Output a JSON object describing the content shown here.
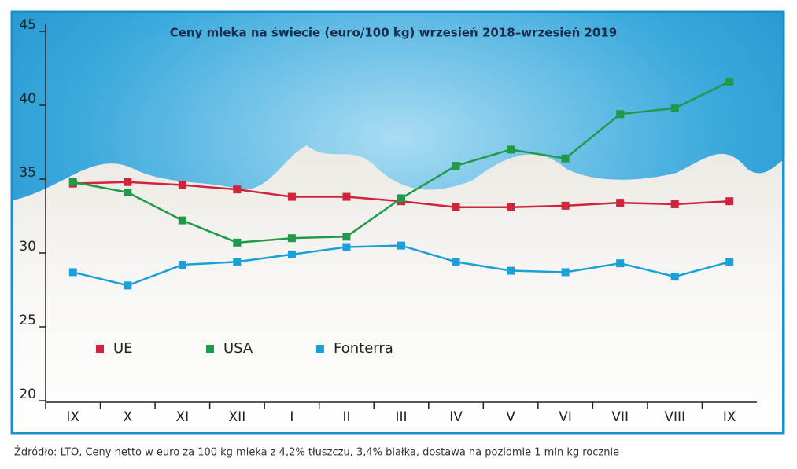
{
  "chart_data": {
    "type": "line",
    "title": "Ceny mleka na świecie (euro/100 kg) wrzesień 2018–wrzesień 2019",
    "categories": [
      "IX",
      "X",
      "XI",
      "XII",
      "I",
      "II",
      "III",
      "IV",
      "V",
      "VI",
      "VII",
      "VIII",
      "IX"
    ],
    "series": [
      {
        "name": "UE",
        "color": "#d0233c",
        "values": [
          34.7,
          34.8,
          34.6,
          34.3,
          33.8,
          33.8,
          33.5,
          33.1,
          33.1,
          33.2,
          33.4,
          33.3,
          33.5
        ]
      },
      {
        "name": "USA",
        "color": "#1f9a4a",
        "values": [
          34.8,
          34.1,
          32.2,
          30.7,
          31.0,
          31.1,
          33.7,
          35.9,
          37.0,
          36.4,
          39.4,
          39.8,
          41.6
        ]
      },
      {
        "name": "Fonterra",
        "color": "#1aa0d8",
        "values": [
          28.7,
          27.8,
          29.2,
          29.4,
          29.9,
          30.4,
          30.5,
          29.4,
          28.8,
          28.7,
          29.3,
          28.4,
          29.4
        ]
      }
    ],
    "ylim": [
      20,
      45
    ],
    "yticks": [
      20,
      25,
      30,
      35,
      40,
      45
    ],
    "legend": "lower left",
    "source": "Źdródło: LTO, Ceny netto w euro za 100 kg mleka z 4,2% tłuszczu, 3,4% białka, dostawa na poziomie 1 mln kg rocznie"
  }
}
